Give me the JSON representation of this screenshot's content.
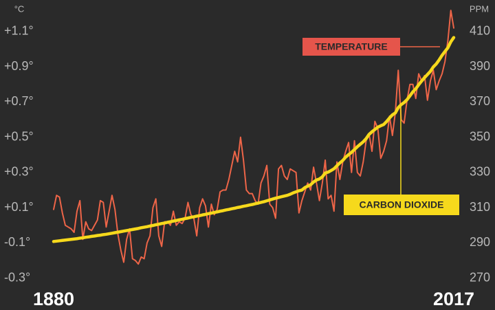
{
  "chart_data": {
    "type": "line",
    "y_label": "°C",
    "y2_label": "PPM",
    "xlim": [
      1880,
      2017
    ],
    "xticks": [
      1880,
      2017
    ],
    "ylim": [
      -0.36,
      1.24
    ],
    "yticks": [
      {
        "value": -0.3,
        "label": "-0.3°"
      },
      {
        "value": -0.1,
        "label": "-0.1°"
      },
      {
        "value": 0.1,
        "label": "+0.1°"
      },
      {
        "value": 0.3,
        "label": "+0.3°"
      },
      {
        "value": 0.5,
        "label": "+0.5°"
      },
      {
        "value": 0.7,
        "label": "+0.7°"
      },
      {
        "value": 0.9,
        "label": "+0.9°"
      },
      {
        "value": 1.1,
        "label": "+1.1°"
      }
    ],
    "y2lim": [
      264,
      424
    ],
    "y2ticks": [
      270,
      290,
      310,
      330,
      350,
      370,
      390,
      410
    ],
    "grid": false,
    "x": [
      1880,
      1881,
      1882,
      1883,
      1884,
      1885,
      1886,
      1887,
      1888,
      1889,
      1890,
      1891,
      1892,
      1893,
      1894,
      1895,
      1896,
      1897,
      1898,
      1899,
      1900,
      1901,
      1902,
      1903,
      1904,
      1905,
      1906,
      1907,
      1908,
      1909,
      1910,
      1911,
      1912,
      1913,
      1914,
      1915,
      1916,
      1917,
      1918,
      1919,
      1920,
      1921,
      1922,
      1923,
      1924,
      1925,
      1926,
      1927,
      1928,
      1929,
      1930,
      1931,
      1932,
      1933,
      1934,
      1935,
      1936,
      1937,
      1938,
      1939,
      1940,
      1941,
      1942,
      1943,
      1944,
      1945,
      1946,
      1947,
      1948,
      1949,
      1950,
      1951,
      1952,
      1953,
      1954,
      1955,
      1956,
      1957,
      1958,
      1959,
      1960,
      1961,
      1962,
      1963,
      1964,
      1965,
      1966,
      1967,
      1968,
      1969,
      1970,
      1971,
      1972,
      1973,
      1974,
      1975,
      1976,
      1977,
      1978,
      1979,
      1980,
      1981,
      1982,
      1983,
      1984,
      1985,
      1986,
      1987,
      1988,
      1989,
      1990,
      1991,
      1992,
      1993,
      1994,
      1995,
      1996,
      1997,
      1998,
      1999,
      2000,
      2001,
      2002,
      2003,
      2004,
      2005,
      2006,
      2007,
      2008,
      2009,
      2010,
      2011,
      2012,
      2013,
      2014,
      2015,
      2016,
      2017
    ],
    "series": [
      {
        "name": "TEMPERATURE",
        "color": "#ee6548",
        "axis": "y",
        "values": [
          0.09,
          0.17,
          0.16,
          0.07,
          0.0,
          -0.01,
          -0.02,
          -0.04,
          0.08,
          0.14,
          -0.08,
          0.02,
          -0.02,
          -0.03,
          0.0,
          0.03,
          0.14,
          0.13,
          -0.01,
          0.08,
          0.17,
          0.09,
          -0.05,
          -0.14,
          -0.21,
          -0.08,
          -0.02,
          -0.19,
          -0.2,
          -0.22,
          -0.18,
          -0.19,
          -0.1,
          -0.06,
          0.1,
          0.15,
          -0.06,
          -0.12,
          0.02,
          0.02,
          0.0,
          0.08,
          0.0,
          0.02,
          0.01,
          0.04,
          0.13,
          0.06,
          0.04,
          -0.06,
          0.1,
          0.15,
          0.11,
          -0.01,
          0.12,
          0.06,
          0.09,
          0.19,
          0.2,
          0.2,
          0.26,
          0.34,
          0.42,
          0.36,
          0.5,
          0.37,
          0.2,
          0.18,
          0.18,
          0.14,
          0.12,
          0.24,
          0.28,
          0.34,
          0.12,
          0.1,
          0.04,
          0.32,
          0.34,
          0.28,
          0.26,
          0.32,
          0.31,
          0.3,
          0.07,
          0.14,
          0.19,
          0.24,
          0.2,
          0.33,
          0.24,
          0.14,
          0.24,
          0.37,
          0.15,
          0.17,
          0.08,
          0.36,
          0.26,
          0.36,
          0.42,
          0.47,
          0.3,
          0.48,
          0.3,
          0.28,
          0.36,
          0.48,
          0.52,
          0.42,
          0.59,
          0.55,
          0.38,
          0.42,
          0.48,
          0.62,
          0.51,
          0.64,
          0.88,
          0.6,
          0.58,
          0.71,
          0.8,
          0.8,
          0.72,
          0.86,
          0.82,
          0.85,
          0.71,
          0.82,
          0.88,
          0.77,
          0.82,
          0.86,
          0.93,
          1.05,
          1.22,
          1.12
        ]
      },
      {
        "name": "CARBON DIOXIDE",
        "color": "#f6d91c",
        "axis": "y2",
        "values": [
          290.8,
          291.0,
          291.2,
          291.4,
          291.6,
          291.8,
          292.0,
          292.2,
          292.4,
          292.7,
          292.9,
          293.2,
          293.4,
          293.7,
          293.9,
          294.2,
          294.4,
          294.7,
          294.9,
          295.2,
          295.5,
          295.8,
          296.1,
          296.4,
          296.7,
          297.0,
          297.3,
          297.6,
          297.9,
          298.2,
          298.6,
          298.9,
          299.2,
          299.6,
          299.9,
          300.3,
          300.6,
          301.0,
          301.3,
          301.7,
          302.0,
          302.4,
          302.7,
          303.1,
          303.4,
          303.8,
          304.1,
          304.5,
          304.8,
          305.2,
          305.5,
          305.9,
          306.2,
          306.6,
          306.9,
          307.3,
          307.6,
          308.0,
          308.3,
          308.7,
          309.0,
          309.4,
          309.7,
          310.1,
          310.4,
          310.8,
          311.1,
          311.5,
          311.8,
          312.2,
          312.6,
          313.0,
          313.4,
          313.9,
          314.4,
          314.9,
          315.4,
          315.8,
          316.2,
          316.6,
          317.0,
          317.6,
          318.4,
          319.0,
          319.6,
          320.0,
          321.4,
          322.2,
          323.0,
          324.6,
          325.7,
          326.3,
          327.5,
          329.7,
          330.2,
          331.1,
          332.1,
          333.8,
          335.4,
          336.8,
          338.7,
          340.1,
          341.4,
          343.0,
          344.6,
          346.0,
          347.4,
          349.2,
          351.6,
          353.1,
          354.4,
          355.7,
          356.5,
          357.2,
          358.9,
          360.9,
          362.7,
          363.8,
          366.8,
          368.5,
          369.7,
          371.3,
          373.5,
          375.8,
          377.5,
          379.8,
          381.9,
          383.8,
          385.6,
          387.4,
          389.9,
          391.6,
          393.9,
          396.5,
          398.7,
          400.8,
          404.2,
          406.6
        ]
      }
    ]
  }
}
